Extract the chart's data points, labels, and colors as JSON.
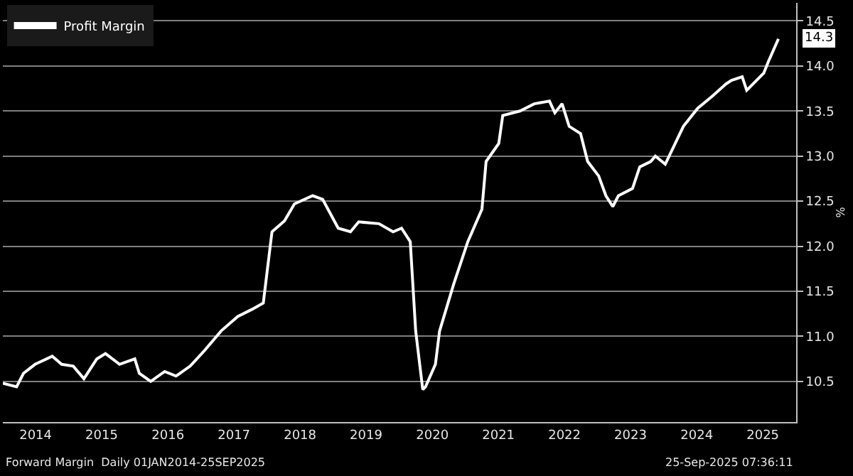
{
  "chart_data": {
    "type": "line",
    "x": [
      "2014-01-01",
      "2014-03-18",
      "2014-04-25",
      "2014-06-28",
      "2014-10-01",
      "2014-11-22",
      "2015-01-25",
      "2015-03-25",
      "2015-06-04",
      "2015-07-22",
      "2015-10-08",
      "2015-12-31",
      "2016-01-25",
      "2016-03-28",
      "2016-06-13",
      "2016-08-15",
      "2016-11-01",
      "2017-01-18",
      "2017-04-21",
      "2017-07-22",
      "2017-10-09",
      "2017-12-10",
      "2018-01-27",
      "2018-04-06",
      "2018-05-31",
      "2018-09-09",
      "2018-11-03",
      "2019-01-28",
      "2019-04-06",
      "2019-05-21",
      "2019-09-10",
      "2019-11-27",
      "2020-01-13",
      "2020-03-01",
      "2020-03-31",
      "2020-05-09",
      "2020-05-24",
      "2020-07-18",
      "2020-08-10",
      "2020-10-27",
      "2021-01-13",
      "2021-04-01",
      "2021-04-24",
      "2021-07-03",
      "2021-07-25",
      "2021-10-28",
      "2022-01-15",
      "2022-04-09",
      "2022-05-09",
      "2022-06-18",
      "2022-07-27",
      "2022-09-28",
      "2022-11-06",
      "2023-01-06",
      "2023-02-15",
      "2023-03-25",
      "2023-04-25",
      "2023-07-12",
      "2023-08-21",
      "2023-10-21",
      "2023-11-15",
      "2024-01-09",
      "2024-04-18",
      "2024-07-06",
      "2024-09-22",
      "2024-12-09",
      "2025-01-09",
      "2025-03-09",
      "2025-04-03",
      "2025-07-06",
      "2025-08-01",
      "2025-09-25"
    ],
    "series": [
      {
        "name": "Profit Margin",
        "color": "#ffffff",
        "values": [
          10.48,
          10.44,
          10.59,
          10.69,
          10.78,
          10.69,
          10.67,
          10.53,
          10.75,
          10.81,
          10.69,
          10.75,
          10.59,
          10.5,
          10.61,
          10.56,
          10.67,
          10.84,
          11.06,
          11.22,
          11.3,
          11.37,
          12.16,
          12.28,
          12.47,
          12.56,
          12.52,
          12.2,
          12.16,
          12.27,
          12.25,
          12.16,
          12.2,
          12.05,
          11.06,
          10.41,
          10.44,
          10.69,
          11.06,
          11.58,
          12.05,
          12.41,
          12.94,
          13.14,
          13.45,
          13.5,
          13.58,
          13.61,
          13.48,
          13.58,
          13.33,
          13.25,
          12.94,
          12.78,
          12.56,
          12.44,
          12.56,
          12.64,
          12.88,
          12.94,
          13.0,
          12.91,
          13.33,
          13.53,
          13.66,
          13.8,
          13.84,
          13.88,
          13.73,
          13.92,
          14.05,
          14.3
        ]
      }
    ],
    "ylabel": "%",
    "xlim": [
      "2014-01-01",
      "2026-01-01"
    ],
    "xticks": [
      {
        "value": "2014-07-01",
        "label": "2014"
      },
      {
        "value": "2015-07-01",
        "label": "2015"
      },
      {
        "value": "2016-07-01",
        "label": "2016"
      },
      {
        "value": "2017-07-01",
        "label": "2017"
      },
      {
        "value": "2018-07-01",
        "label": "2018"
      },
      {
        "value": "2019-07-01",
        "label": "2019"
      },
      {
        "value": "2020-07-01",
        "label": "2020"
      },
      {
        "value": "2021-07-01",
        "label": "2021"
      },
      {
        "value": "2022-07-01",
        "label": "2022"
      },
      {
        "value": "2023-07-01",
        "label": "2023"
      },
      {
        "value": "2024-07-01",
        "label": "2024"
      },
      {
        "value": "2025-07-01",
        "label": "2025"
      }
    ],
    "ylim": [
      10.05,
      14.7
    ],
    "yticks": [
      {
        "value": 10.5,
        "label": "10.5"
      },
      {
        "value": 11.0,
        "label": "11.0"
      },
      {
        "value": 11.5,
        "label": "11.5"
      },
      {
        "value": 12.0,
        "label": "12.0"
      },
      {
        "value": 12.5,
        "label": "12.5"
      },
      {
        "value": 13.0,
        "label": "13.0"
      },
      {
        "value": 13.5,
        "label": "13.5"
      },
      {
        "value": 14.0,
        "label": "14.0"
      },
      {
        "value": 14.5,
        "label": "14.5"
      }
    ],
    "annotations": [
      "14.3",
      "Forward Margin  Daily 01JAN2014-25SEP2025",
      "25-Sep-2025 07:36:11"
    ],
    "grid": "y",
    "legend": "top left",
    "marker": "none",
    "line_style": "solid"
  }
}
